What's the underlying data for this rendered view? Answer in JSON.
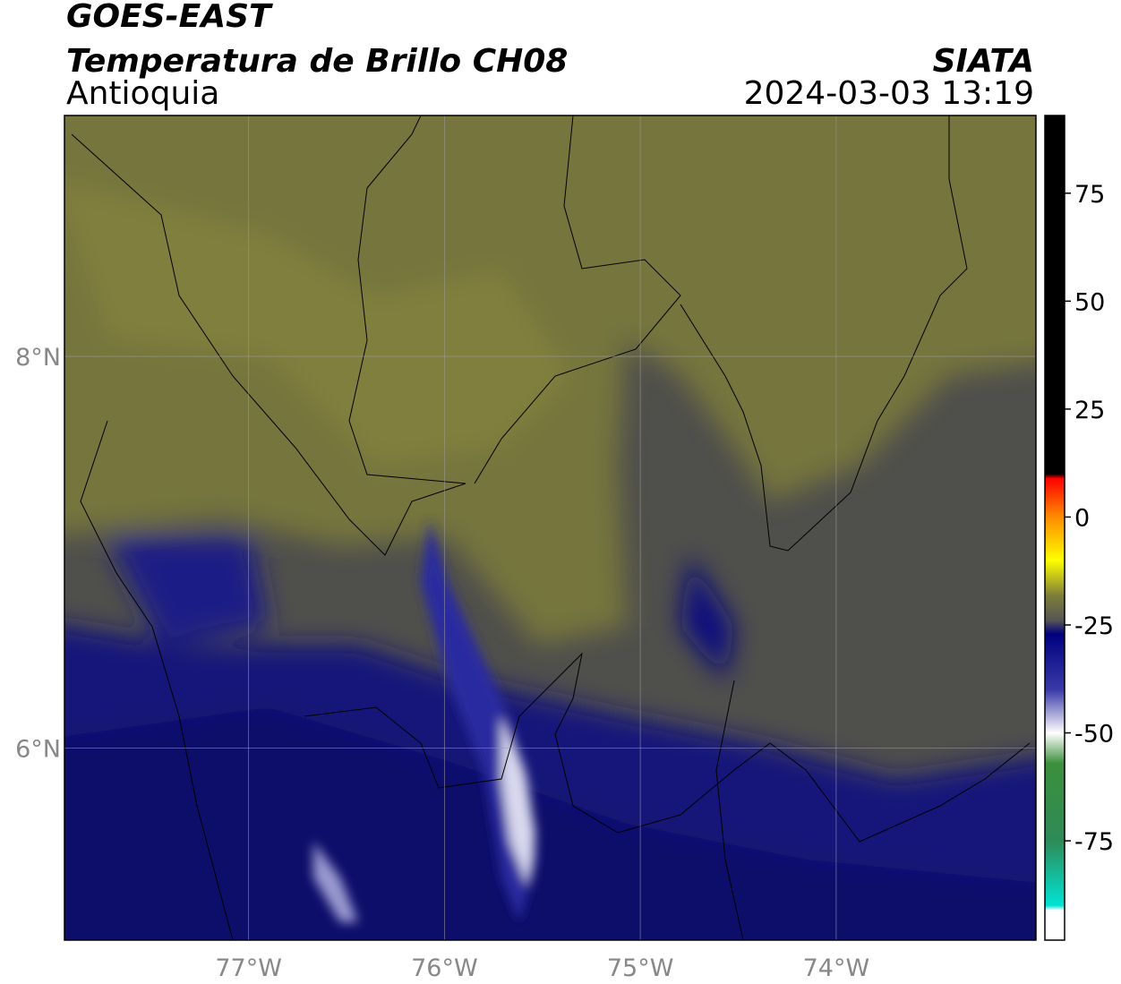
{
  "header": {
    "title": "GOES-EAST",
    "subtitle": "Temperatura de Brillo CH08",
    "region": "Antioquia",
    "source": "SIATA",
    "datetime": "2024-03-03 13:19"
  },
  "chart_data": {
    "type": "map",
    "xlim": [
      -77.94,
      -72.98
    ],
    "ylim": [
      5.02,
      9.23
    ],
    "xticks": [
      {
        "value": -77,
        "label": "77°W"
      },
      {
        "value": -76,
        "label": "76°W"
      },
      {
        "value": -75,
        "label": "75°W"
      },
      {
        "value": -74,
        "label": "74°W"
      }
    ],
    "yticks": [
      {
        "value": 6,
        "label": "6°N"
      },
      {
        "value": 8,
        "label": "8°N"
      }
    ],
    "grid": true,
    "colorbar": {
      "lim": [
        -98,
        93
      ],
      "ticks": [
        -75,
        -50,
        -25,
        0,
        25,
        50,
        75
      ],
      "stops": [
        {
          "value": 93,
          "color": "#000000"
        },
        {
          "value": 10,
          "color": "#000000"
        },
        {
          "value": 9,
          "color": "#ff0000"
        },
        {
          "value": 0,
          "color": "#ff8c00"
        },
        {
          "value": -10,
          "color": "#ffff00"
        },
        {
          "value": -18,
          "color": "#7f7f3a"
        },
        {
          "value": -24,
          "color": "#555555"
        },
        {
          "value": -27,
          "color": "#00007f"
        },
        {
          "value": -40,
          "color": "#3a3aa8"
        },
        {
          "value": -50,
          "color": "#ffffff"
        },
        {
          "value": -57,
          "color": "#3c8f3c"
        },
        {
          "value": -75,
          "color": "#2e8b57"
        },
        {
          "value": -90,
          "color": "#00e5d5"
        },
        {
          "value": -91,
          "color": "#ffffff"
        },
        {
          "value": -98,
          "color": "#ffffff"
        }
      ]
    }
  }
}
